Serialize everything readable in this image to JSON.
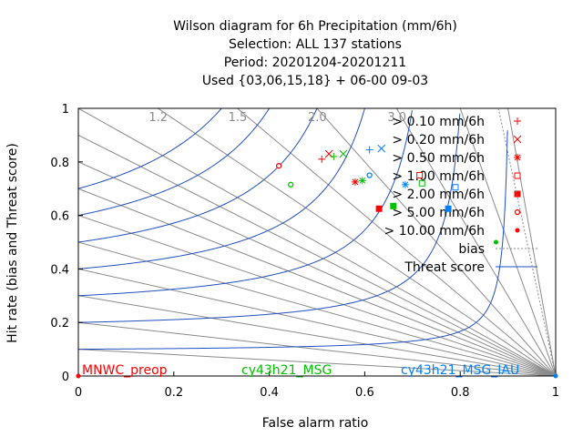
{
  "chart_data": {
    "type": "scatter",
    "title_lines": [
      "Wilson diagram  for 6h Precipitation (mm/6h)",
      "Selection: ALL    137 stations",
      "Period: 20201204-20201211",
      "Used {03,06,15,18} + 06-00 09-03"
    ],
    "xlabel": "False alarm ratio",
    "ylabel": "Hit rate (bias and Threat score)",
    "xlim": [
      0,
      1
    ],
    "ylim": [
      0,
      1
    ],
    "x_ticks": [
      0,
      0.2,
      0.4,
      0.6,
      0.8,
      1
    ],
    "y_ticks": [
      0,
      0.2,
      0.4,
      0.6,
      0.8,
      1
    ],
    "x_tick_labels": [
      "0",
      "0.2",
      "0.4",
      "0.6",
      "0.8",
      "1"
    ],
    "y_tick_labels": [
      "0",
      "0.2",
      "0.4",
      "0.6",
      "0.8",
      "1"
    ],
    "bias_lines": [
      0.1,
      0.2,
      0.3,
      0.4,
      0.5,
      0.6,
      0.7,
      0.8,
      0.9,
      1.0,
      1.2,
      1.5,
      2.0,
      3.0,
      5.0,
      10.0
    ],
    "bias_labels": [
      {
        "bias": 1.2,
        "text": "1.2"
      },
      {
        "bias": 1.5,
        "text": "1.5"
      },
      {
        "bias": 2.0,
        "text": "2.0"
      },
      {
        "bias": 3.0,
        "text": "3.0"
      }
    ],
    "threat_score_levels": [
      0.1,
      0.2,
      0.3,
      0.4,
      0.5,
      0.6,
      0.7
    ],
    "thresholds": [
      {
        "label": "> 0.10 mm/6h",
        "symbol": "plus"
      },
      {
        "label": "> 0.20 mm/6h",
        "symbol": "cross"
      },
      {
        "label": "> 0.50 mm/6h",
        "symbol": "star"
      },
      {
        "label": "> 1.00 mm/6h",
        "symbol": "open-square"
      },
      {
        "label": "> 2.00 mm/6h",
        "symbol": "filled-square"
      },
      {
        "label": "> 5.00 mm/6h",
        "symbol": "open-circle"
      },
      {
        "label": "> 10.00 mm/6h",
        "symbol": "filled-circle"
      }
    ],
    "legend_extra": [
      {
        "label": "bias",
        "style": "dotted"
      },
      {
        "label": "Threat score",
        "style": "solid"
      }
    ],
    "legend_placement": "top-right",
    "series": [
      {
        "name": "MNWC_preop",
        "color": "#ff0000",
        "points": [
          {
            "x": 0.51,
            "y": 0.81
          },
          {
            "x": 0.525,
            "y": 0.83
          },
          {
            "x": 0.58,
            "y": 0.725
          },
          {
            "x": 0.715,
            "y": 0.75
          },
          {
            "x": 0.63,
            "y": 0.625
          },
          {
            "x": 0.42,
            "y": 0.785
          },
          {
            "x": 0.0,
            "y": 0.0
          }
        ]
      },
      {
        "name": "cy43h21_MSG",
        "color": "#00c000",
        "points": [
          {
            "x": 0.535,
            "y": 0.82
          },
          {
            "x": 0.555,
            "y": 0.83
          },
          {
            "x": 0.595,
            "y": 0.73
          },
          {
            "x": 0.72,
            "y": 0.72
          },
          {
            "x": 0.66,
            "y": 0.635
          },
          {
            "x": 0.445,
            "y": 0.715
          },
          {
            "x": 0.875,
            "y": 0.5
          }
        ]
      },
      {
        "name": "cy43h21_MSG_IAU",
        "color": "#0080ff",
        "points": [
          {
            "x": 0.61,
            "y": 0.845
          },
          {
            "x": 0.635,
            "y": 0.85
          },
          {
            "x": 0.685,
            "y": 0.715
          },
          {
            "x": 0.79,
            "y": 0.705
          },
          {
            "x": 0.775,
            "y": 0.625
          },
          {
            "x": 0.61,
            "y": 0.75
          },
          {
            "x": 1.0,
            "y": 0.0
          }
        ]
      }
    ]
  }
}
